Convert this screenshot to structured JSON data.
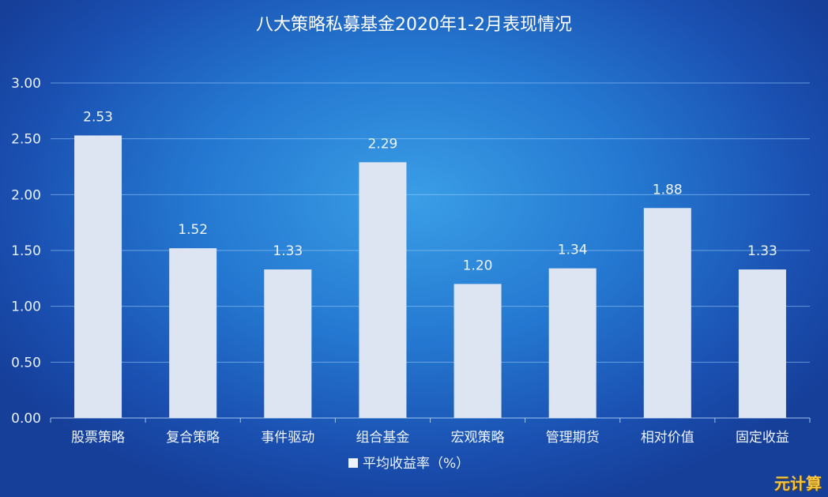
{
  "chart_data": {
    "type": "bar",
    "title": "八大策略私募基金2020年1-2月表现情况",
    "categories": [
      "股票策略",
      "复合策略",
      "事件驱动",
      "组合基金",
      "宏观策略",
      "管理期货",
      "相对价值",
      "固定收益"
    ],
    "series": [
      {
        "name": "平均收益率（%）",
        "values": [
          2.53,
          1.52,
          1.33,
          2.29,
          1.2,
          1.34,
          1.88,
          1.33
        ],
        "labels": [
          "2.53",
          "1.52",
          "1.33",
          "2.29",
          "1.20",
          "1.34",
          "1.88",
          "1.33"
        ]
      }
    ],
    "yticks": [
      "0.00",
      "0.50",
      "1.00",
      "1.50",
      "2.00",
      "2.50",
      "3.00"
    ],
    "ylim": [
      0,
      3
    ],
    "grid": true,
    "legend": "bottom",
    "bar_color": "#dde5f3",
    "background_color": "#2477d0"
  },
  "watermark": "元计算"
}
